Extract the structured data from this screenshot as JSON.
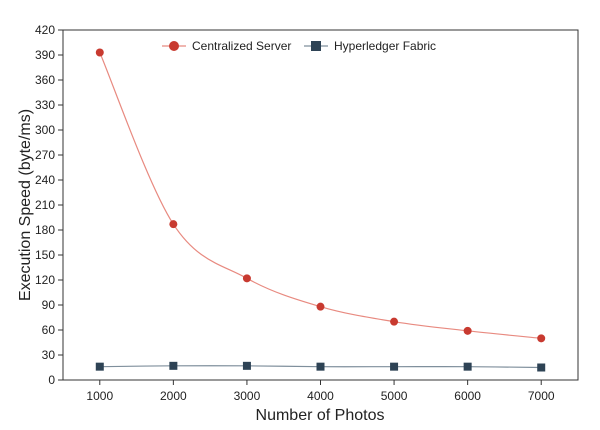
{
  "chart_data": {
    "type": "line",
    "xlabel": "Number of Photos",
    "ylabel": "Execution Speed  (byte/ms)",
    "x": [
      1000,
      2000,
      3000,
      4000,
      5000,
      6000,
      7000
    ],
    "xticks": [
      "1000",
      "2000",
      "3000",
      "4000",
      "5000",
      "6000",
      "7000"
    ],
    "xlim": [
      500,
      7500
    ],
    "ylim": [
      0,
      420
    ],
    "yticks": [
      "0",
      "30",
      "60",
      "90",
      "120",
      "150",
      "180",
      "210",
      "240",
      "270",
      "300",
      "330",
      "360",
      "390",
      "420"
    ],
    "legend_position": "top",
    "grid": false,
    "series": [
      {
        "name": "Centralized Server",
        "marker": "circle",
        "line_color": "#e88a80",
        "marker_color": "#c83a30",
        "values": [
          393,
          187,
          122,
          88,
          70,
          59,
          50
        ]
      },
      {
        "name": "Hyperledger Fabric",
        "marker": "square",
        "line_color": "#7f8f9c",
        "marker_color": "#2e4355",
        "values": [
          16,
          17,
          17,
          16,
          16,
          16,
          15
        ]
      }
    ]
  }
}
